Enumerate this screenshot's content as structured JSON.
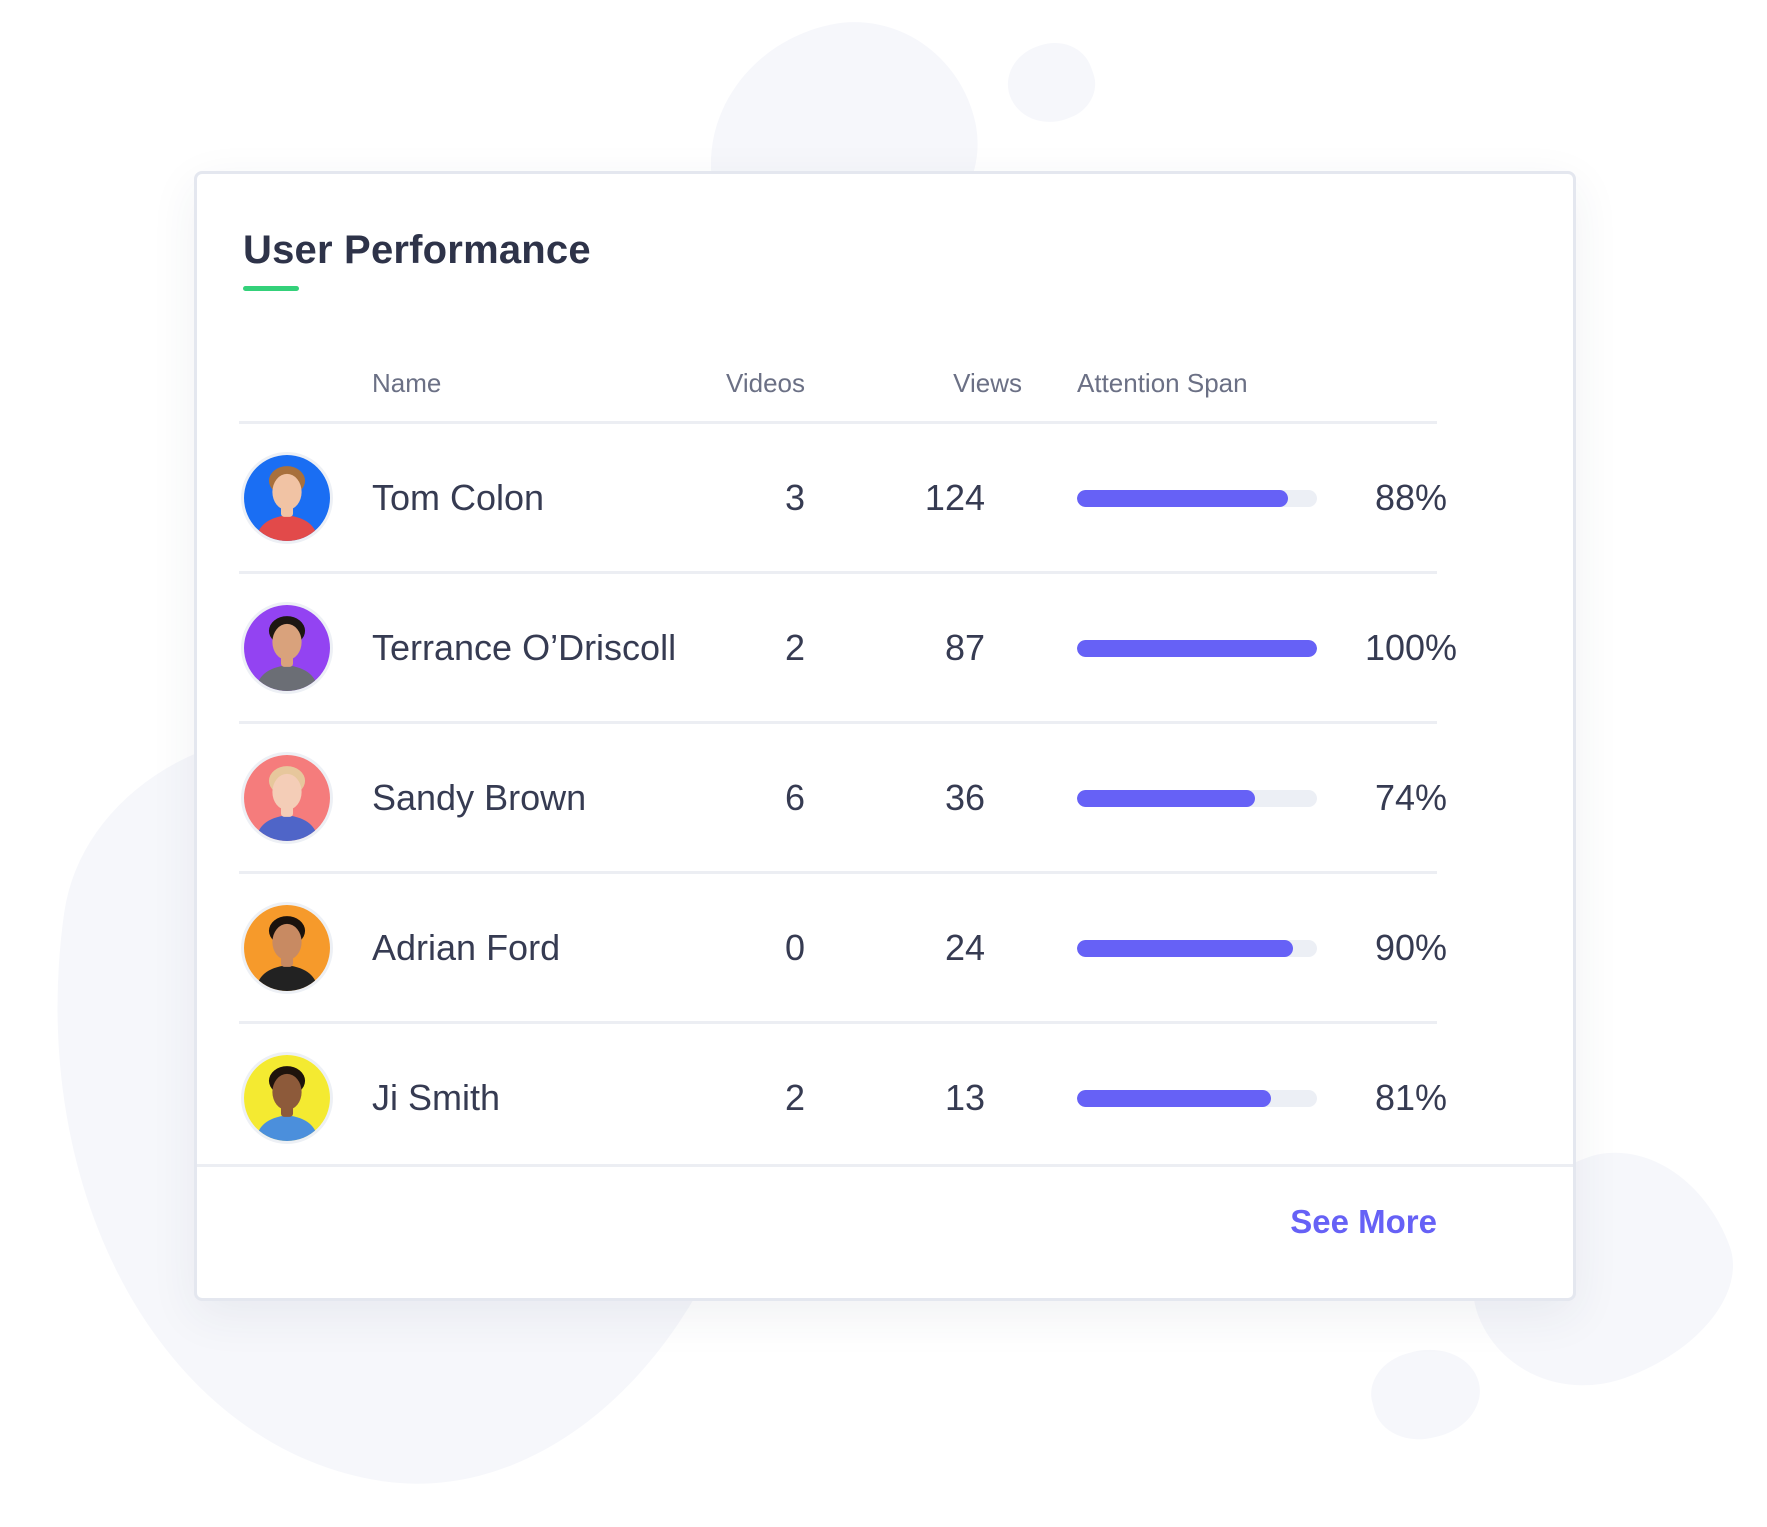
{
  "title": "User Performance",
  "columns": {
    "name": "Name",
    "videos": "Videos",
    "views": "Views",
    "attention": "Attention Span"
  },
  "users": [
    {
      "name": "Tom Colon",
      "videos": "3",
      "views": "124",
      "attention_pct": 88,
      "attention_label": "88%",
      "avatar_bg": "#1a6ef3",
      "shirt": "#e24a4a",
      "skin": "#f1c3a4",
      "hair": "#a8703c"
    },
    {
      "name": "Terrance O’Driscoll",
      "videos": "2",
      "views": "87",
      "attention_pct": 100,
      "attention_label": "100%",
      "avatar_bg": "#9343f2",
      "shirt": "#6b6e75",
      "skin": "#d9a27c",
      "hair": "#1d1712"
    },
    {
      "name": "Sandy Brown",
      "videos": "6",
      "views": "36",
      "attention_pct": 74,
      "attention_label": "74%",
      "avatar_bg": "#f57c7c",
      "shirt": "#4f65c8",
      "skin": "#f4cdb7",
      "hair": "#e7c79c"
    },
    {
      "name": "Adrian Ford",
      "videos": "0",
      "views": "24",
      "attention_pct": 90,
      "attention_label": "90%",
      "avatar_bg": "#f69a2b",
      "shirt": "#222222",
      "skin": "#c88a62",
      "hair": "#1a120d"
    },
    {
      "name": "Ji Smith",
      "videos": "2",
      "views": "13",
      "attention_pct": 81,
      "attention_label": "81%",
      "avatar_bg": "#f4ea31",
      "shirt": "#4b8fdc",
      "skin": "#8d5a3a",
      "hair": "#1e130c"
    }
  ],
  "footer": {
    "see_more": "See More"
  },
  "colors": {
    "accent": "#6661f6",
    "underline": "#34d17a",
    "track": "#eceff5"
  }
}
